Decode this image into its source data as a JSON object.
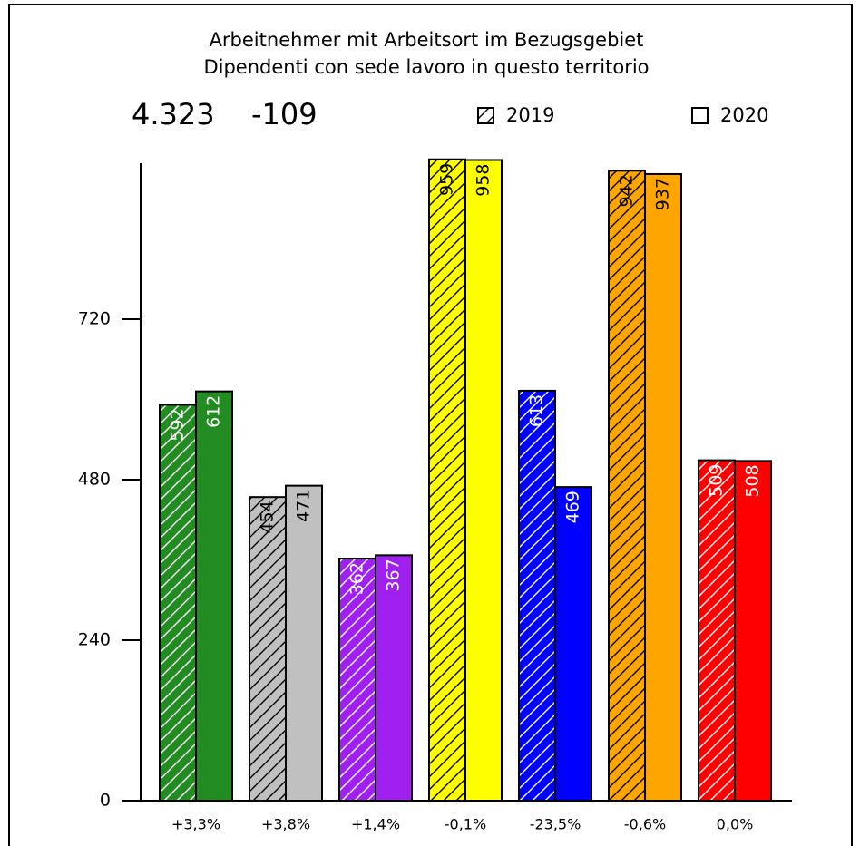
{
  "chart_data": {
    "type": "bar",
    "title": [
      "Arbeitnehmer mit Arbeitsort im Bezugsgebiet",
      "Dipendenti con sede lavoro in questo territorio"
    ],
    "headline": [
      "4.323",
      "-109"
    ],
    "categories": [
      "+3,3%",
      "+3,8%",
      "+1,4%",
      "-0,1%",
      "-23,5%",
      "-0,6%",
      "0,0%"
    ],
    "colors": [
      "#228b22",
      "#c0c0c0",
      "#a020f0",
      "#ffff00",
      "#0000ff",
      "#ffa500",
      "#ff0000"
    ],
    "label_colors": [
      "#ffffff",
      "#000000",
      "#ffffff",
      "#000000",
      "#ffffff",
      "#000000",
      "#ffffff"
    ],
    "series": [
      {
        "name": "2019",
        "hatched": true,
        "values": [
          592,
          454,
          362,
          959,
          613,
          942,
          509
        ]
      },
      {
        "name": "2020",
        "hatched": false,
        "values": [
          612,
          471,
          367,
          958,
          469,
          937,
          508
        ]
      }
    ],
    "ylim": [
      0,
      960
    ],
    "yticks": [
      0,
      240,
      480,
      720
    ]
  }
}
